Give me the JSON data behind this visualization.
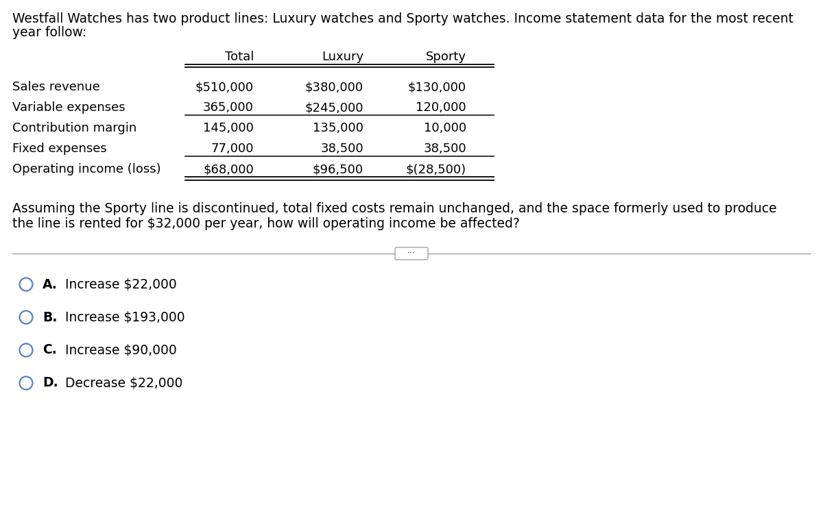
{
  "intro_text_line1": "Westfall Watches has two product lines: Luxury watches and Sporty watches. Income statement data for the most recent",
  "intro_text_line2": "year follow:",
  "table": {
    "headers": [
      "",
      "Total",
      "Luxury",
      "Sporty"
    ],
    "rows": [
      [
        "Sales revenue",
        "$510,000",
        "$380,000",
        "$130,000"
      ],
      [
        "Variable expenses",
        "365,000",
        "$245,000",
        "120,000"
      ],
      [
        "Contribution margin",
        "145,000",
        "135,000",
        "10,000"
      ],
      [
        "Fixed expenses",
        "77,000",
        "38,500",
        "38,500"
      ],
      [
        "Operating income (loss)",
        "$68,000",
        "$96,500",
        "$(28,500)"
      ]
    ]
  },
  "question_line1": "Assuming the Sporty line is discontinued, total fixed costs remain unchanged, and the space formerly used to produce",
  "question_line2": "the line is rented for $32,000 per year, how will operating income be affected?",
  "options": [
    {
      "letter": "A.",
      "text": "Increase $22,000"
    },
    {
      "letter": "B.",
      "text": "Increase $193,000"
    },
    {
      "letter": "C.",
      "text": "Increase $90,000"
    },
    {
      "letter": "D.",
      "text": "Decrease $22,000"
    }
  ],
  "bg_color": "#ffffff",
  "text_color": "#000000",
  "circle_color": "#5b7fc4",
  "line_color": "#000000",
  "divider_color": "#999999"
}
